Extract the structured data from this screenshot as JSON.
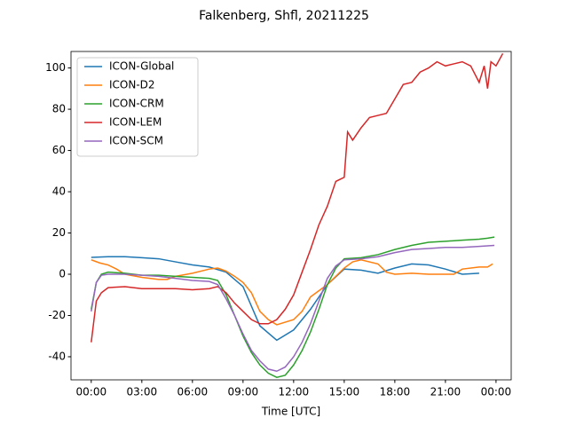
{
  "chart_data": {
    "type": "line",
    "title": "Falkenberg, Shfl, 20211225",
    "xlabel": "Time [UTC]",
    "xlim": [
      -1.2,
      24.9
    ],
    "ylim": [
      -51.2,
      108
    ],
    "xticks": [
      {
        "value": 0,
        "label": "00:00"
      },
      {
        "value": 3,
        "label": "03:00"
      },
      {
        "value": 6,
        "label": "06:00"
      },
      {
        "value": 9,
        "label": "09:00"
      },
      {
        "value": 12,
        "label": "12:00"
      },
      {
        "value": 15,
        "label": "15:00"
      },
      {
        "value": 18,
        "label": "18:00"
      },
      {
        "value": 21,
        "label": "21:00"
      },
      {
        "value": 24,
        "label": "00:00"
      }
    ],
    "yticks": [
      -40,
      -20,
      0,
      20,
      40,
      60,
      80,
      100
    ],
    "legend": "upper left",
    "series": [
      {
        "name": "ICON-Global",
        "color": "#1f77b4",
        "x": [
          0,
          1,
          2,
          3,
          4,
          5,
          6,
          7,
          8,
          9,
          10,
          11,
          12,
          13,
          14,
          15,
          16,
          17,
          18,
          19,
          20,
          21,
          22,
          23
        ],
        "values": [
          8.2,
          8.5,
          8.5,
          8,
          7.5,
          6,
          4.5,
          3.5,
          1,
          -6,
          -25,
          -32,
          -27,
          -17,
          -5,
          2.5,
          2,
          0.5,
          3,
          5,
          4.5,
          2.5,
          0,
          0.5
        ]
      },
      {
        "name": "ICON-D2",
        "color": "#ff7f0e",
        "x": [
          0,
          0.5,
          1,
          1.5,
          2,
          3,
          4,
          4.5,
          5,
          6,
          7,
          7.5,
          8,
          8.5,
          9,
          9.5,
          10,
          10.5,
          11,
          12,
          12.5,
          13,
          14,
          15,
          15.5,
          16,
          17,
          17.5,
          18,
          19,
          20,
          21,
          21.5,
          22,
          23,
          23.5,
          23.8
        ],
        "values": [
          7,
          5.5,
          4.5,
          2.5,
          0,
          -1.5,
          -2.5,
          -2.5,
          -1,
          0.5,
          2.5,
          3,
          1.5,
          -1,
          -4,
          -9,
          -18,
          -22,
          -24.5,
          -22,
          -18,
          -11,
          -5,
          3,
          6,
          7,
          5,
          1,
          0,
          0.5,
          0,
          0,
          0,
          2.5,
          3.5,
          3.5,
          5
        ]
      },
      {
        "name": "ICON-CRM",
        "color": "#2ca02c",
        "x": [
          0,
          0.3,
          0.6,
          1,
          2,
          3,
          4,
          5,
          6,
          7,
          7.5,
          8,
          8.5,
          9,
          9.5,
          10,
          10.5,
          11,
          11.5,
          12,
          12.5,
          13,
          13.5,
          14,
          14.5,
          15,
          16,
          17,
          18,
          19,
          20,
          21,
          22,
          23,
          23.5,
          23.9
        ],
        "values": [
          -17,
          -4,
          0,
          1,
          0.5,
          -0.5,
          -0.5,
          -1,
          -1.5,
          -2,
          -3,
          -10,
          -20,
          -30,
          -38,
          -44,
          -48,
          -50,
          -49,
          -44,
          -37,
          -28,
          -17,
          -5,
          3,
          7.5,
          8,
          9.5,
          12,
          14,
          15.5,
          16,
          16.5,
          17,
          17.5,
          18
        ]
      },
      {
        "name": "ICON-LEM",
        "color": "#d62728",
        "x": [
          0,
          0.3,
          0.6,
          1,
          2,
          3,
          4,
          5,
          6,
          7,
          7.5,
          8,
          8.5,
          9,
          9.5,
          10,
          10.5,
          11,
          11.5,
          12,
          12.5,
          13,
          13.5,
          14,
          14.5,
          15,
          15.2,
          15.5,
          16,
          16.5,
          17,
          17.5,
          18,
          18.5,
          19,
          19.5,
          20,
          20.5,
          21,
          21.5,
          22,
          22.5,
          23,
          23.3,
          23.5,
          23.7,
          24,
          24.4
        ],
        "values": [
          -33,
          -13,
          -9,
          -6.5,
          -6,
          -7,
          -7,
          -7,
          -7.5,
          -7,
          -6,
          -9,
          -14,
          -18,
          -22,
          -24,
          -24,
          -22,
          -17,
          -10,
          1,
          12,
          24,
          33,
          45,
          47,
          69,
          65,
          71,
          76,
          77,
          78,
          85,
          92,
          93,
          98,
          100,
          103,
          101,
          102,
          103,
          101,
          93,
          101,
          90,
          103,
          101,
          107
        ]
      },
      {
        "name": "ICON-SCM",
        "color": "#9467bd",
        "x": [
          0,
          0.3,
          0.6,
          1,
          2,
          3,
          4,
          5,
          6,
          7,
          7.5,
          8,
          8.5,
          9,
          9.5,
          10,
          10.5,
          11,
          11.5,
          12,
          12.5,
          13,
          13.5,
          14,
          14.5,
          15,
          16,
          17,
          18,
          19,
          20,
          21,
          22,
          23,
          23.9
        ],
        "values": [
          -18,
          -4,
          -0.5,
          0,
          0,
          -0.5,
          -1,
          -2,
          -3,
          -3.5,
          -5,
          -12,
          -20,
          -29,
          -37,
          -42,
          -46,
          -47,
          -45,
          -40,
          -33,
          -24,
          -13,
          -2,
          4,
          7,
          7.5,
          8.5,
          10.5,
          12,
          12.5,
          13,
          13,
          13.5,
          14
        ]
      }
    ]
  }
}
